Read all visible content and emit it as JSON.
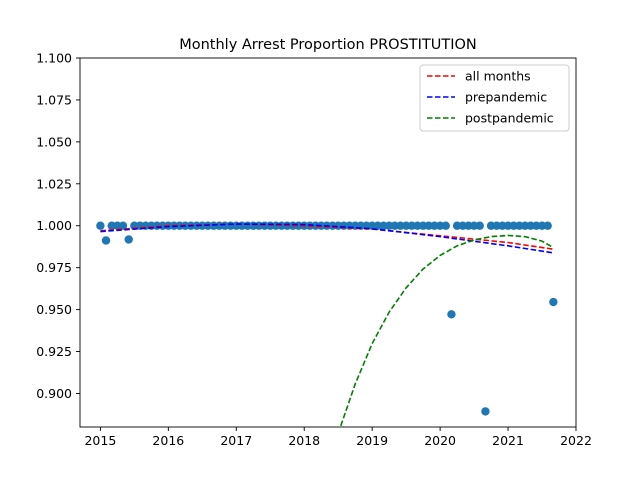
{
  "chart_data": {
    "type": "scatter",
    "title": "Monthly Arrest Proportion PROSTITUTION",
    "xlabel": "",
    "ylabel": "",
    "xlim": [
      2014.7,
      2022.0
    ],
    "ylim": [
      0.88,
      1.1
    ],
    "xticks": [
      2015,
      2016,
      2017,
      2018,
      2019,
      2020,
      2021,
      2022
    ],
    "xtick_labels": [
      "2015",
      "2016",
      "2017",
      "2018",
      "2019",
      "2020",
      "2021",
      "2022"
    ],
    "yticks": [
      0.9,
      0.925,
      0.95,
      0.975,
      1.0,
      1.025,
      1.05,
      1.075,
      1.1
    ],
    "ytick_labels": [
      "0.900",
      "0.925",
      "0.950",
      "0.975",
      "1.000",
      "1.025",
      "1.050",
      "1.075",
      "1.100"
    ],
    "grid": false,
    "legend_position": "upper right",
    "point_color": "#1f77b4",
    "points": {
      "x": [
        2015.0,
        2015.083,
        2015.167,
        2015.25,
        2015.333,
        2015.417,
        2015.5,
        2015.583,
        2015.667,
        2015.75,
        2015.833,
        2015.917,
        2016.0,
        2016.083,
        2016.167,
        2016.25,
        2016.333,
        2016.417,
        2016.5,
        2016.583,
        2016.667,
        2016.75,
        2016.833,
        2016.917,
        2017.0,
        2017.083,
        2017.167,
        2017.25,
        2017.333,
        2017.417,
        2017.5,
        2017.583,
        2017.667,
        2017.75,
        2017.833,
        2017.917,
        2018.0,
        2018.083,
        2018.167,
        2018.25,
        2018.333,
        2018.417,
        2018.5,
        2018.583,
        2018.667,
        2018.75,
        2018.833,
        2018.917,
        2019.0,
        2019.083,
        2019.167,
        2019.25,
        2019.333,
        2019.417,
        2019.5,
        2019.583,
        2019.667,
        2019.75,
        2019.833,
        2019.917,
        2020.0,
        2020.083,
        2020.167,
        2020.25,
        2020.333,
        2020.417,
        2020.5,
        2020.583,
        2020.667,
        2020.75,
        2020.833,
        2020.917,
        2021.0,
        2021.083,
        2021.167,
        2021.25,
        2021.333,
        2021.417,
        2021.5,
        2021.583,
        2021.667
      ],
      "y": [
        1.0,
        0.9912,
        1.0,
        1.0,
        1.0,
        0.9918,
        1.0,
        1.0,
        1.0,
        1.0,
        1.0,
        1.0,
        1.0,
        1.0,
        1.0,
        1.0,
        1.0,
        1.0,
        1.0,
        1.0,
        1.0,
        1.0,
        1.0,
        1.0,
        1.0,
        1.0,
        1.0,
        1.0,
        1.0,
        1.0,
        1.0,
        1.0,
        1.0,
        1.0,
        1.0,
        1.0,
        1.0,
        1.0,
        1.0,
        1.0,
        1.0,
        1.0,
        1.0,
        1.0,
        1.0,
        1.0,
        1.0,
        1.0,
        1.0,
        1.0,
        1.0,
        1.0,
        1.0,
        1.0,
        1.0,
        1.0,
        1.0,
        1.0,
        1.0,
        1.0,
        1.0,
        1.0,
        0.9472,
        1.0,
        1.0,
        1.0,
        1.0,
        1.0,
        0.8893,
        1.0,
        1.0,
        1.0,
        1.0,
        1.0,
        1.0,
        1.0,
        1.0,
        1.0,
        1.0,
        1.0,
        0.9545
      ]
    },
    "series": [
      {
        "name": "all months",
        "color": "#ff0000",
        "style": "dashed",
        "x": [
          2015.0,
          2016.0,
          2017.0,
          2018.0,
          2019.0,
          2020.0,
          2021.0,
          2021.667
        ],
        "y": [
          0.997,
          1.0,
          1.001,
          1.0,
          0.998,
          0.994,
          0.99,
          0.986
        ]
      },
      {
        "name": "prepandemic",
        "color": "#0000ff",
        "style": "dashed",
        "x": [
          2015.0,
          2016.0,
          2017.0,
          2018.0,
          2019.0,
          2020.0,
          2021.0,
          2021.667
        ],
        "y": [
          0.9965,
          0.9995,
          1.001,
          1.0007,
          0.9982,
          0.9935,
          0.988,
          0.9838
        ]
      },
      {
        "name": "postpandemic",
        "color": "#008000",
        "style": "dashed",
        "x": [
          2018.5,
          2018.75,
          2019.0,
          2019.25,
          2019.5,
          2019.75,
          2020.0,
          2020.25,
          2020.5,
          2020.75,
          2021.0,
          2021.25,
          2021.5,
          2021.667
        ],
        "y": [
          0.8762,
          0.9056,
          0.9297,
          0.9485,
          0.963,
          0.9742,
          0.9823,
          0.988,
          0.9915,
          0.9935,
          0.9942,
          0.9935,
          0.9908,
          0.987
        ]
      }
    ]
  }
}
